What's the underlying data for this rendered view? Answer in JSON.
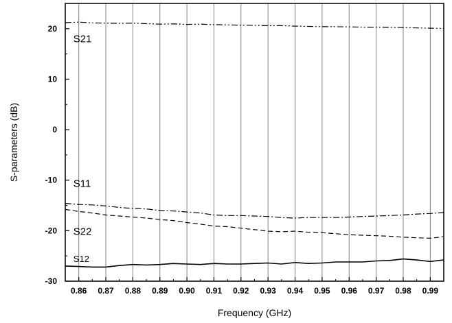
{
  "chart_data": {
    "type": "line",
    "xlabel": "Frequency (GHz)",
    "ylabel": "S-parameters (dB)",
    "xlim": [
      0.855,
      0.995
    ],
    "ylim": [
      -30,
      25
    ],
    "grid": "vertical",
    "x_ticks": [
      "0.86",
      "0.87",
      "0.88",
      "0.89",
      "0.90",
      "0.91",
      "0.92",
      "0.93",
      "0.94",
      "0.95",
      "0.96",
      "0.97",
      "0.98",
      "0.99"
    ],
    "y_ticks": [
      "20",
      "10",
      "0",
      "-10",
      "-20",
      "-30"
    ],
    "x": [
      0.855,
      0.86,
      0.865,
      0.87,
      0.875,
      0.88,
      0.885,
      0.89,
      0.895,
      0.9,
      0.905,
      0.91,
      0.915,
      0.92,
      0.925,
      0.93,
      0.935,
      0.94,
      0.945,
      0.95,
      0.955,
      0.96,
      0.965,
      0.97,
      0.975,
      0.98,
      0.985,
      0.99,
      0.995
    ],
    "series": [
      {
        "name": "S21",
        "style": "dash-dot-dot",
        "values": [
          21.2,
          21.3,
          21.15,
          21.1,
          21.05,
          21.1,
          21.0,
          20.9,
          20.95,
          20.85,
          20.9,
          20.8,
          20.75,
          20.7,
          20.65,
          20.6,
          20.6,
          20.5,
          20.45,
          20.4,
          20.4,
          20.35,
          20.3,
          20.3,
          20.25,
          20.2,
          20.15,
          20.1,
          20.05
        ]
      },
      {
        "name": "S11",
        "style": "dash-dot",
        "values": [
          -14.6,
          -14.8,
          -14.9,
          -15.1,
          -15.4,
          -15.6,
          -15.7,
          -16.0,
          -16.1,
          -16.3,
          -16.5,
          -16.9,
          -17.0,
          -17.0,
          -17.1,
          -17.2,
          -17.4,
          -17.5,
          -17.4,
          -17.4,
          -17.4,
          -17.3,
          -17.2,
          -17.1,
          -17.0,
          -16.9,
          -16.7,
          -16.6,
          -16.4
        ]
      },
      {
        "name": "S22",
        "style": "dashed",
        "values": [
          -15.8,
          -16.2,
          -16.5,
          -16.9,
          -17.1,
          -17.3,
          -17.5,
          -17.8,
          -18.0,
          -18.4,
          -18.7,
          -19.1,
          -19.2,
          -19.5,
          -19.8,
          -20.1,
          -20.2,
          -20.1,
          -20.3,
          -20.4,
          -20.6,
          -20.8,
          -20.9,
          -21.0,
          -21.1,
          -21.3,
          -21.4,
          -21.5,
          -21.2
        ]
      },
      {
        "name": "S12",
        "style": "solid",
        "values": [
          -27.0,
          -27.1,
          -27.2,
          -27.2,
          -26.9,
          -26.7,
          -26.8,
          -26.7,
          -26.5,
          -26.6,
          -26.7,
          -26.5,
          -26.6,
          -26.6,
          -26.5,
          -26.4,
          -26.6,
          -26.3,
          -26.5,
          -26.4,
          -26.2,
          -26.2,
          -26.2,
          -26.0,
          -25.9,
          -25.6,
          -25.8,
          -26.1,
          -25.8
        ]
      }
    ],
    "series_labels": [
      {
        "text": "S21",
        "x": 0.858,
        "y": 17.3,
        "size": "normal"
      },
      {
        "text": "S11",
        "x": 0.858,
        "y": -11.3,
        "size": "normal"
      },
      {
        "text": "S22",
        "x": 0.858,
        "y": -20.8,
        "size": "normal"
      },
      {
        "text": "S12",
        "x": 0.858,
        "y": -26.2,
        "size": "small"
      }
    ]
  }
}
